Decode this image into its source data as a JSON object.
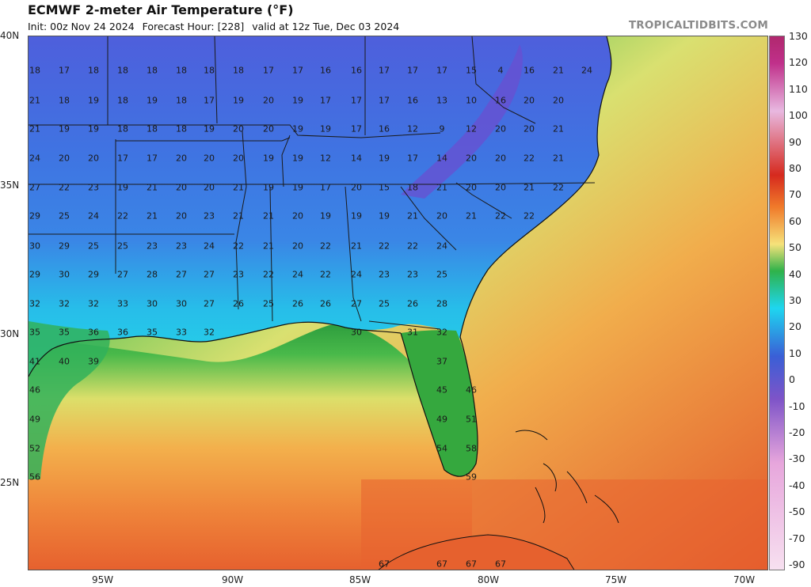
{
  "header": {
    "title": "ECMWF 2-meter Air Temperature (°F)",
    "init": "Init: 00z Nov 24 2024",
    "forecast_hour": "Forecast Hour: [228]",
    "valid": "valid at 12z Tue, Dec 03 2024",
    "brand": "TROPICALTIDBITS.COM"
  },
  "axes": {
    "lat_labels": [
      "40N",
      "35N",
      "30N",
      "25N"
    ],
    "lon_labels": [
      "95W",
      "90W",
      "85W",
      "80W",
      "75W",
      "70W"
    ]
  },
  "colorbar": {
    "labels": [
      "130",
      "120",
      "110",
      "100",
      "90",
      "80",
      "70",
      "60",
      "50",
      "40",
      "30",
      "20",
      "10",
      "0",
      "-10",
      "-20",
      "-30",
      "-40",
      "-50",
      "-70",
      "-90"
    ],
    "colors": {
      "hot": "#b0286e",
      "red": "#d62a1e",
      "orange": "#f07a2a",
      "yellow": "#f6e27a",
      "green": "#2fb24a",
      "cyan": "#1ed6f0",
      "blue": "#3a5fd6",
      "purple": "#7e54c8",
      "pink": "#e7a6dc"
    }
  },
  "map_colors": {
    "gulf_deep": "#e6612e",
    "gulf_mid": "#f2a64a",
    "gulf_light": "#eadc6e",
    "coast_green": "#2e9e3e",
    "land_blue": "#3f6fe0",
    "land_cyan": "#27c8f0",
    "land_purple": "#6f5ad8",
    "atlantic_green": "#3db94c"
  },
  "temps": [
    {
      "t": "18"
    },
    {
      "t": "17"
    },
    {
      "t": "18"
    },
    {
      "t": "18"
    },
    {
      "t": "18"
    },
    {
      "t": "18"
    },
    {
      "t": "18"
    },
    {
      "t": "18"
    },
    {
      "t": "17"
    },
    {
      "t": "17"
    },
    {
      "t": "16"
    },
    {
      "t": "16"
    },
    {
      "t": "17"
    },
    {
      "t": "17"
    },
    {
      "t": "17"
    },
    {
      "t": "15"
    },
    {
      "t": "4"
    },
    {
      "t": "16"
    },
    {
      "t": "21"
    },
    {
      "t": "24"
    },
    {
      "t": "21"
    },
    {
      "t": "18"
    },
    {
      "t": "19"
    },
    {
      "t": "18"
    },
    {
      "t": "19"
    },
    {
      "t": "18"
    },
    {
      "t": "17"
    },
    {
      "t": "19"
    },
    {
      "t": "20"
    },
    {
      "t": "19"
    },
    {
      "t": "17"
    },
    {
      "t": "17"
    },
    {
      "t": "17"
    },
    {
      "t": "16"
    },
    {
      "t": "13"
    },
    {
      "t": "10"
    },
    {
      "t": "16"
    },
    {
      "t": "20"
    },
    {
      "t": "20"
    },
    {
      "t": "21"
    },
    {
      "t": "19"
    },
    {
      "t": "19"
    },
    {
      "t": "18"
    },
    {
      "t": "18"
    },
    {
      "t": "18"
    },
    {
      "t": "19"
    },
    {
      "t": "20"
    },
    {
      "t": "20"
    },
    {
      "t": "19"
    },
    {
      "t": "19"
    },
    {
      "t": "17"
    },
    {
      "t": "16"
    },
    {
      "t": "12"
    },
    {
      "t": "9"
    },
    {
      "t": "12"
    },
    {
      "t": "20"
    },
    {
      "t": "20"
    },
    {
      "t": "21"
    },
    {
      "t": "24"
    },
    {
      "t": "20"
    },
    {
      "t": "20"
    },
    {
      "t": "17"
    },
    {
      "t": "17"
    },
    {
      "t": "20"
    },
    {
      "t": "20"
    },
    {
      "t": "20"
    },
    {
      "t": "19"
    },
    {
      "t": "19"
    },
    {
      "t": "12"
    },
    {
      "t": "14"
    },
    {
      "t": "19"
    },
    {
      "t": "17"
    },
    {
      "t": "14"
    },
    {
      "t": "20"
    },
    {
      "t": "20"
    },
    {
      "t": "22"
    },
    {
      "t": "21"
    },
    {
      "t": "27"
    },
    {
      "t": "22"
    },
    {
      "t": "23"
    },
    {
      "t": "19"
    },
    {
      "t": "21"
    },
    {
      "t": "20"
    },
    {
      "t": "20"
    },
    {
      "t": "21"
    },
    {
      "t": "19"
    },
    {
      "t": "19"
    },
    {
      "t": "17"
    },
    {
      "t": "20"
    },
    {
      "t": "15"
    },
    {
      "t": "18"
    },
    {
      "t": "21"
    },
    {
      "t": "20"
    },
    {
      "t": "20"
    },
    {
      "t": "21"
    },
    {
      "t": "22"
    },
    {
      "t": "29"
    },
    {
      "t": "25"
    },
    {
      "t": "24"
    },
    {
      "t": "22"
    },
    {
      "t": "21"
    },
    {
      "t": "20"
    },
    {
      "t": "23"
    },
    {
      "t": "21"
    },
    {
      "t": "21"
    },
    {
      "t": "20"
    },
    {
      "t": "19"
    },
    {
      "t": "19"
    },
    {
      "t": "19"
    },
    {
      "t": "21"
    },
    {
      "t": "20"
    },
    {
      "t": "21"
    },
    {
      "t": "22"
    },
    {
      "t": "22"
    },
    {
      "t": "30"
    },
    {
      "t": "29"
    },
    {
      "t": "25"
    },
    {
      "t": "25"
    },
    {
      "t": "23"
    },
    {
      "t": "23"
    },
    {
      "t": "24"
    },
    {
      "t": "22"
    },
    {
      "t": "21"
    },
    {
      "t": "20"
    },
    {
      "t": "22"
    },
    {
      "t": "21"
    },
    {
      "t": "22"
    },
    {
      "t": "22"
    },
    {
      "t": "24"
    },
    {
      "t": "29"
    },
    {
      "t": "30"
    },
    {
      "t": "29"
    },
    {
      "t": "27"
    },
    {
      "t": "28"
    },
    {
      "t": "27"
    },
    {
      "t": "27"
    },
    {
      "t": "23"
    },
    {
      "t": "22"
    },
    {
      "t": "24"
    },
    {
      "t": "22"
    },
    {
      "t": "24"
    },
    {
      "t": "23"
    },
    {
      "t": "23"
    },
    {
      "t": "25"
    },
    {
      "t": "32"
    },
    {
      "t": "32"
    },
    {
      "t": "32"
    },
    {
      "t": "33"
    },
    {
      "t": "30"
    },
    {
      "t": "30"
    },
    {
      "t": "27"
    },
    {
      "t": "26"
    },
    {
      "t": "25"
    },
    {
      "t": "26"
    },
    {
      "t": "26"
    },
    {
      "t": "27"
    },
    {
      "t": "25"
    },
    {
      "t": "26"
    },
    {
      "t": "28"
    },
    {
      "t": "35"
    },
    {
      "t": "35"
    },
    {
      "t": "36"
    },
    {
      "t": "36"
    },
    {
      "t": "35"
    },
    {
      "t": "33"
    },
    {
      "t": "32"
    },
    {
      "t": "30"
    },
    {
      "t": "31"
    },
    {
      "t": "32"
    },
    {
      "t": "41"
    },
    {
      "t": "40"
    },
    {
      "t": "39"
    },
    {
      "t": "37"
    },
    {
      "t": "46"
    },
    {
      "t": "45"
    },
    {
      "t": "46"
    },
    {
      "t": "49"
    },
    {
      "t": "49"
    },
    {
      "t": "51"
    },
    {
      "t": "52"
    },
    {
      "t": "54"
    },
    {
      "t": "58"
    },
    {
      "t": "56"
    },
    {
      "t": "59"
    },
    {
      "t": "67"
    },
    {
      "t": "67"
    },
    {
      "t": "67"
    },
    {
      "t": "67"
    }
  ]
}
